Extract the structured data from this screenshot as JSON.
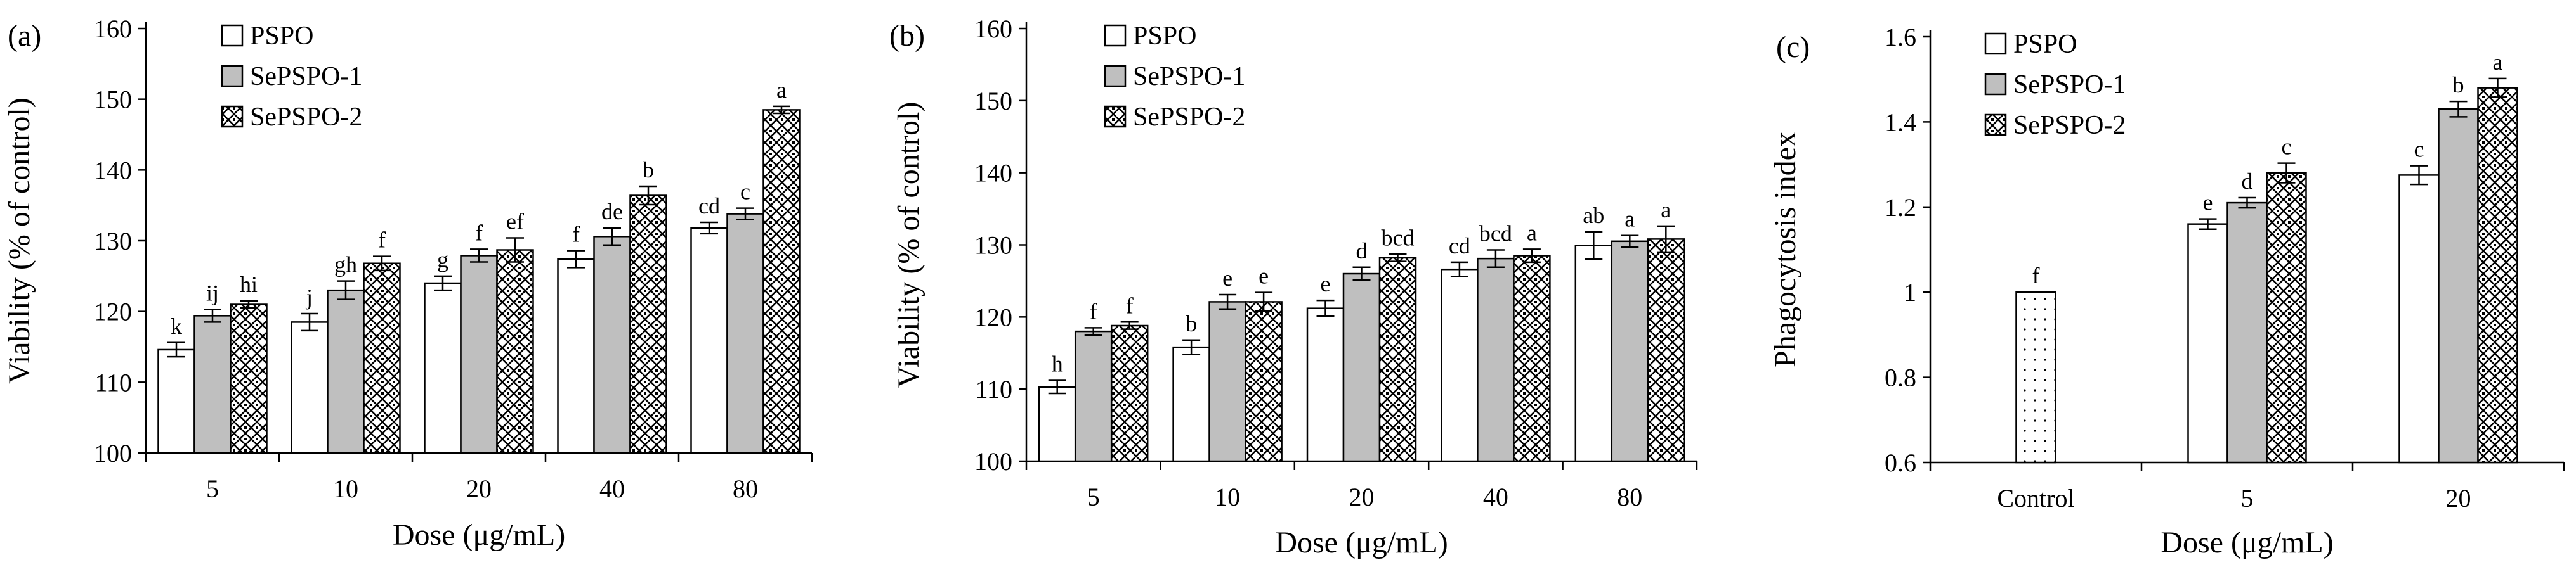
{
  "colors": {
    "PSPO": "#ffffff",
    "SePSPO-1": "#bfbfbf",
    "SePSPO-2": "checker-pattern",
    "Control": "dotted-pattern",
    "stroke": "#000000"
  },
  "chart_data": [
    {
      "type": "bar",
      "panel_label": "(a)",
      "xlabel": "Dose (μg/mL)",
      "ylabel": "Viability (% of control)",
      "ylim": [
        100,
        160
      ],
      "yticks": [
        100,
        110,
        120,
        130,
        140,
        150,
        160
      ],
      "legend_position": "top-left",
      "grid": false,
      "categories": [
        "5",
        "10",
        "20",
        "40",
        "80"
      ],
      "series": [
        {
          "name": "PSPO",
          "values": [
            114.6,
            118.5,
            124.0,
            127.4,
            131.8
          ],
          "errors": [
            1.0,
            1.2,
            1.0,
            1.2,
            0.8
          ],
          "labels": [
            "k",
            "j",
            "g",
            "f",
            "cd"
          ]
        },
        {
          "name": "SePSPO-1",
          "values": [
            119.4,
            123.0,
            127.9,
            130.6,
            133.8
          ],
          "errors": [
            0.9,
            1.3,
            0.9,
            1.2,
            0.8
          ],
          "labels": [
            "ij",
            "gh",
            "f",
            "de",
            "c"
          ]
        },
        {
          "name": "SePSPO-2",
          "values": [
            121.0,
            126.8,
            128.7,
            136.4,
            148.5
          ],
          "errors": [
            0.5,
            1.0,
            1.7,
            1.3,
            0.5
          ],
          "labels": [
            "hi",
            "f",
            "ef",
            "b",
            "a"
          ]
        }
      ]
    },
    {
      "type": "bar",
      "panel_label": "(b)",
      "xlabel": "Dose (μg/mL)",
      "ylabel": "Viability (% of control)",
      "ylim": [
        100,
        160
      ],
      "yticks": [
        100,
        110,
        120,
        130,
        140,
        150,
        160
      ],
      "legend_position": "top-left",
      "grid": false,
      "categories": [
        "5",
        "10",
        "20",
        "40",
        "80"
      ],
      "series": [
        {
          "name": "PSPO",
          "values": [
            110.3,
            115.8,
            121.2,
            126.6,
            129.9
          ],
          "errors": [
            0.9,
            1.0,
            1.1,
            1.0,
            1.9
          ],
          "labels": [
            "h",
            "b",
            "e",
            "cd",
            "ab"
          ]
        },
        {
          "name": "SePSPO-1",
          "values": [
            118.0,
            122.1,
            126.0,
            128.1,
            130.5
          ],
          "errors": [
            0.5,
            1.0,
            0.9,
            1.2,
            0.8
          ],
          "labels": [
            "f",
            "e",
            "d",
            "bcd",
            "a"
          ]
        },
        {
          "name": "SePSPO-2",
          "values": [
            118.8,
            122.1,
            128.2,
            128.5,
            130.8
          ],
          "errors": [
            0.5,
            1.3,
            0.5,
            0.9,
            1.8
          ],
          "labels": [
            "f",
            "e",
            "bcd",
            "a",
            "a"
          ]
        }
      ]
    },
    {
      "type": "bar",
      "panel_label": "(c)",
      "xlabel": "Dose (μg/mL)",
      "ylabel": "Phagocytosis index",
      "ylim": [
        0.6,
        1.6
      ],
      "yticks": [
        0.6,
        0.8,
        1,
        1.2,
        1.4,
        1.6
      ],
      "legend_position": "top-left",
      "grid": false,
      "categories": [
        "Control",
        "5",
        "20"
      ],
      "control": {
        "value": 1.0,
        "error": 0,
        "label": "f"
      },
      "series": [
        {
          "name": "PSPO",
          "values": [
            null,
            1.16,
            1.275
          ],
          "errors": [
            0,
            0.012,
            0.022
          ],
          "labels": [
            "",
            "e",
            "c"
          ]
        },
        {
          "name": "SePSPO-1",
          "values": [
            null,
            1.21,
            1.43
          ],
          "errors": [
            0,
            0.012,
            0.018
          ],
          "labels": [
            "",
            "d",
            "b"
          ]
        },
        {
          "name": "SePSPO-2",
          "values": [
            null,
            1.28,
            1.48
          ],
          "errors": [
            0,
            0.023,
            0.022
          ],
          "labels": [
            "",
            "c",
            "a"
          ]
        }
      ]
    }
  ]
}
